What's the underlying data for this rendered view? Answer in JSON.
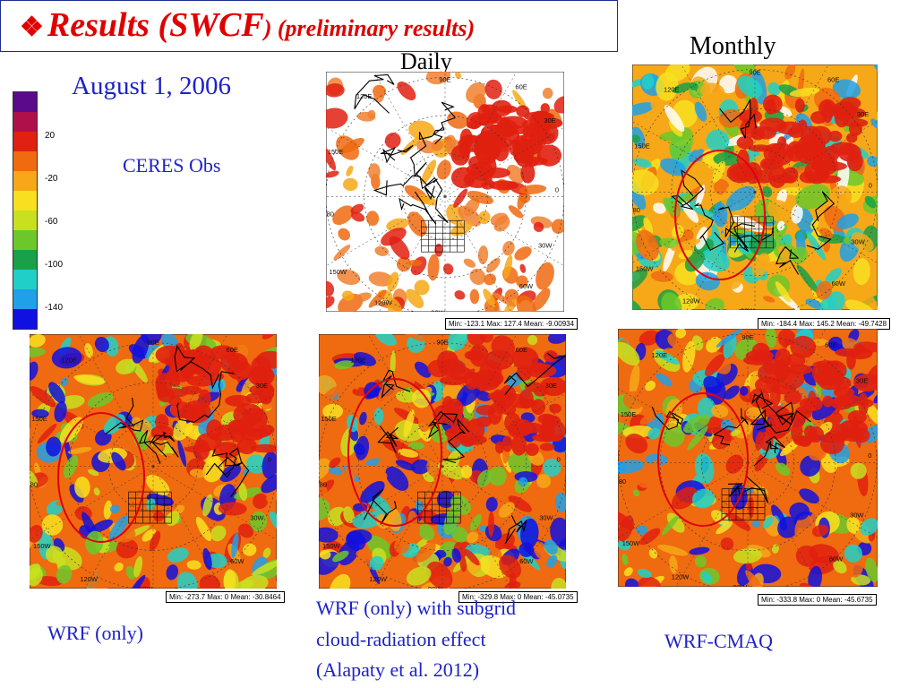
{
  "slide": {
    "title_bullet": "❖",
    "title_main": "Results (SWCF",
    "title_sub": ") (preliminary results)",
    "date": "August 1, 2006",
    "obs_label": "CERES Obs",
    "daily_label": "Daily",
    "monthly_label": "Monthly"
  },
  "colorbar": {
    "ticks": [
      "20",
      "-20",
      "-60",
      "-100",
      "-140"
    ],
    "colors": [
      "#5a0a8a",
      "#b0104a",
      "#e02010",
      "#f06a10",
      "#f6a818",
      "#f8e020",
      "#c8e020",
      "#6cc82a",
      "#1aa048",
      "#20d0c8",
      "#20a0e8",
      "#1010e0"
    ]
  },
  "panels": {
    "obs_daily": {
      "stats": "Min: -123.1 Max: 127.4 Mean: -9.00934"
    },
    "obs_monthly": {
      "stats": "Min: -184.4 Max: 145.2 Mean: -49.7428"
    },
    "wrf_only": {
      "stats": "Min: -273.7 Max: 0 Mean: -30.8464",
      "label": "WRF (only)"
    },
    "wrf_subgrid": {
      "stats": "Min: -329.8 Max: 0 Mean: -45.0735",
      "label_line1": " WRF (only) with subgrid",
      "label_line2": "cloud-radiation effect",
      "label_line3": "(Alapaty et al. 2012)"
    },
    "wrf_cmaq": {
      "stats": "Min: -333.8 Max: 0 Mean: -45.6735",
      "label": "WRF-CMAQ"
    }
  },
  "grid_labels": [
    "90E",
    "60E",
    "120E",
    "30E",
    "150E",
    "0",
    "180",
    "30W",
    "150W",
    "60W",
    "120W",
    "90W"
  ]
}
